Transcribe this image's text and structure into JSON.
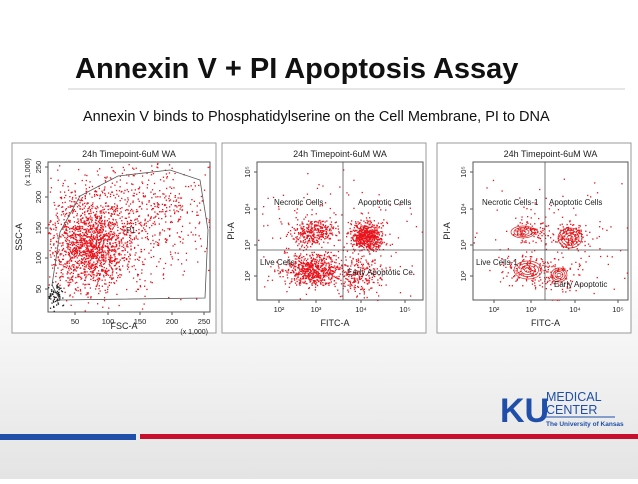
{
  "slide": {
    "title": "Annexin V + PI Apoptosis Assay",
    "subtitle": "Annexin V binds to Phosphatidylserine on the Cell Membrane, PI to DNA",
    "plots": [
      {
        "title": "24h Timepoint-6uM WA",
        "x_label": "FSC-A",
        "y_label": "SSC-A",
        "x_ticks": [
          "50",
          "100",
          "150",
          "200",
          "250"
        ],
        "x_scale": "(x 1,000)",
        "y_ticks": [
          "250",
          "200",
          "150",
          "100",
          "50"
        ],
        "y_scale": "(x 1,000)",
        "gates": [
          "P1"
        ]
      },
      {
        "title": "24h Timepoint-6uM WA",
        "x_label": "FITC-A",
        "y_label": "PI-A",
        "x_ticks": [
          "10²",
          "10³",
          "10⁴",
          "10⁵"
        ],
        "y_ticks": [
          "10⁵",
          "10⁴",
          "10³",
          "10²"
        ],
        "gates": [
          "Necrotic Cells",
          "Apoptotic Cells",
          "Live Cells",
          "Early Apoptotic Ce"
        ]
      },
      {
        "title": "24h Timepoint-6uM WA",
        "x_label": "FITC-A",
        "y_label": "PI-A",
        "x_ticks": [
          "10²",
          "10³",
          "10⁴",
          "10⁵"
        ],
        "y_ticks": [
          "10⁵",
          "10⁴",
          "10³",
          "10²"
        ],
        "gates": [
          "Necrotic Cells-1",
          "Apoptotic Cells",
          "Live Cells-1",
          "Early Apoptotic"
        ]
      }
    ],
    "logo": {
      "mark": "KU",
      "line1": "MEDICAL",
      "line2": "CENTER",
      "line3": "The University of Kansas"
    }
  }
}
